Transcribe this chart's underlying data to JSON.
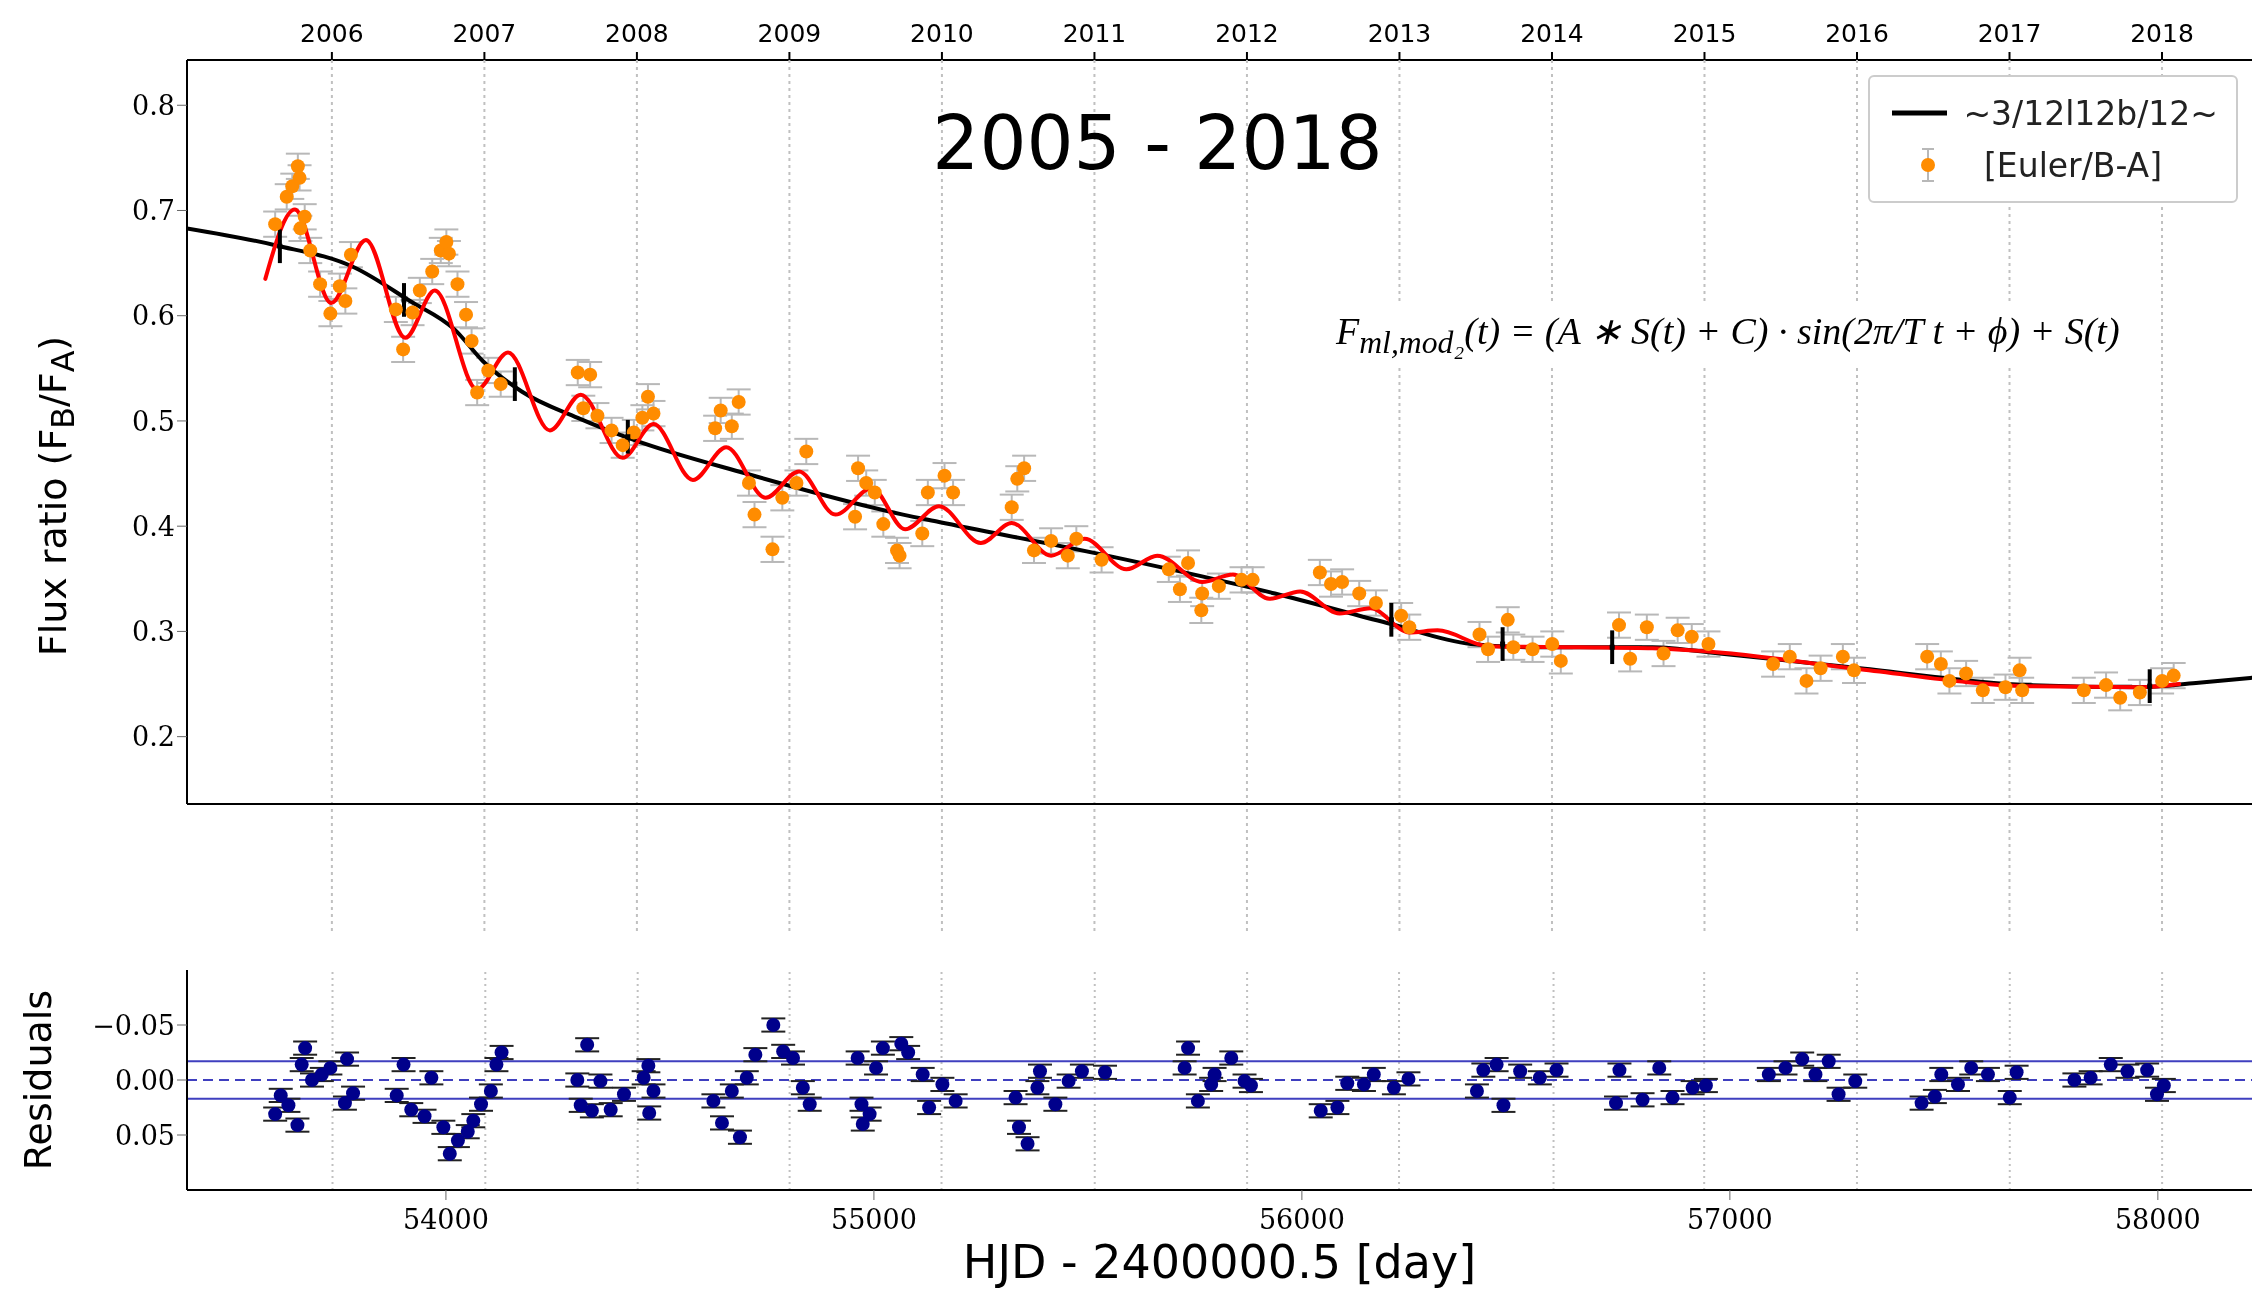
{
  "chart_data": [
    {
      "type": "scatter",
      "title": "2005 - 2018",
      "ylabel": "Flux ratio (F$_{B}$/F$_{A}$)",
      "annotations": [
        "F$_{ml,mod₂}$(t) = (A ∗ S(t) + C) · sin(2π/T t + ϕ) + S(t)"
      ],
      "legend": "top right",
      "grid": "x",
      "xlim": [
        53395,
        58220
      ],
      "xticks": [
        54000,
        55000,
        56000,
        57000,
        58000
      ],
      "tick_labels": "y",
      "x2lim": [
        2005.05,
        2018.59
      ],
      "x2ticks": [
        2006,
        2007,
        2008,
        2009,
        2010,
        2011,
        2012,
        2013,
        2014,
        2015,
        2016,
        2017,
        2018
      ],
      "ylim": [
        0.136,
        0.843
      ],
      "yticks": [
        0.2,
        0.3,
        0.4,
        0.5,
        0.6,
        0.7,
        0.8
      ],
      "series": [
        {
          "type": "scatter",
          "name": "[Euler/B-A]",
          "color": "#ff8c00",
          "marker": "circle",
          "x": [
            53601,
            53628,
            53641,
            53654,
            53658,
            53660,
            53670,
            53683,
            53706,
            53730,
            53752,
            53765,
            53778,
            53883,
            53900,
            53922,
            53939,
            53968,
            53988,
            54001,
            54007,
            54027,
            54047,
            54060,
            54073,
            54099,
            54128,
            54308,
            54321,
            54337,
            54354,
            54387,
            54413,
            54439,
            54459,
            54472,
            54485,
            54629,
            54642,
            54668,
            54684,
            54708,
            54721,
            54763,
            54786,
            54819,
            54842,
            54956,
            54963,
            54982,
            55002,
            55022,
            55054,
            55060,
            55113,
            55126,
            55165,
            55185,
            55322,
            55335,
            55351,
            55374,
            55414,
            55453,
            55473,
            55532,
            55689,
            55715,
            55734,
            55765,
            55767,
            55806,
            55859,
            55885,
            56042,
            56068,
            56094,
            56134,
            56173,
            56232,
            56251,
            56415,
            56435,
            56481,
            56494,
            56539,
            56585,
            56605,
            56741,
            56767,
            56806,
            56845,
            56878,
            56911,
            56950,
            57101,
            57140,
            57179,
            57212,
            57264,
            57290,
            57461,
            57493,
            57513,
            57552,
            57591,
            57644,
            57677,
            57683,
            57827,
            57879,
            57912,
            57958,
            58010,
            58037
          ],
          "values": [
            0.687,
            0.713,
            0.723,
            0.742,
            0.731,
            0.683,
            0.694,
            0.662,
            0.63,
            0.602,
            0.628,
            0.614,
            0.658,
            0.606,
            0.568,
            0.603,
            0.624,
            0.642,
            0.662,
            0.67,
            0.659,
            0.63,
            0.601,
            0.576,
            0.527,
            0.548,
            0.535,
            0.546,
            0.512,
            0.544,
            0.505,
            0.491,
            0.477,
            0.489,
            0.503,
            0.523,
            0.507,
            0.493,
            0.51,
            0.495,
            0.518,
            0.441,
            0.411,
            0.378,
            0.427,
            0.441,
            0.471,
            0.409,
            0.455,
            0.441,
            0.432,
            0.402,
            0.377,
            0.372,
            0.393,
            0.432,
            0.448,
            0.432,
            0.418,
            0.445,
            0.455,
            0.377,
            0.386,
            0.372,
            0.388,
            0.368,
            0.359,
            0.34,
            0.365,
            0.32,
            0.336,
            0.343,
            0.349,
            0.349,
            0.356,
            0.345,
            0.347,
            0.336,
            0.327,
            0.315,
            0.304,
            0.297,
            0.283,
            0.311,
            0.285,
            0.283,
            0.288,
            0.272,
            0.306,
            0.274,
            0.304,
            0.279,
            0.301,
            0.295,
            0.288,
            0.269,
            0.276,
            0.253,
            0.265,
            0.276,
            0.263,
            0.276,
            0.269,
            0.253,
            0.26,
            0.244,
            0.247,
            0.263,
            0.244,
            0.244,
            0.249,
            0.237,
            0.242,
            0.253,
            0.258
          ],
          "errors": [
            0.012,
            0.012,
            0.012,
            0.012,
            0.012,
            0.012,
            0.012,
            0.012,
            0.012,
            0.012,
            0.012,
            0.012,
            0.012,
            0.012,
            0.012,
            0.012,
            0.012,
            0.012,
            0.012,
            0.012,
            0.012,
            0.012,
            0.012,
            0.012,
            0.012,
            0.012,
            0.012,
            0.012,
            0.012,
            0.012,
            0.012,
            0.012,
            0.012,
            0.012,
            0.012,
            0.012,
            0.012,
            0.012,
            0.012,
            0.012,
            0.012,
            0.012,
            0.012,
            0.012,
            0.012,
            0.012,
            0.012,
            0.012,
            0.012,
            0.012,
            0.012,
            0.012,
            0.012,
            0.012,
            0.012,
            0.012,
            0.012,
            0.012,
            0.012,
            0.012,
            0.012,
            0.012,
            0.012,
            0.012,
            0.012,
            0.012,
            0.012,
            0.012,
            0.012,
            0.012,
            0.012,
            0.012,
            0.012,
            0.012,
            0.012,
            0.012,
            0.012,
            0.012,
            0.012,
            0.012,
            0.012,
            0.012,
            0.012,
            0.012,
            0.012,
            0.012,
            0.012,
            0.012,
            0.012,
            0.012,
            0.012,
            0.012,
            0.012,
            0.012,
            0.012,
            0.012,
            0.012,
            0.012,
            0.012,
            0.012,
            0.012,
            0.012,
            0.012,
            0.012,
            0.012,
            0.012,
            0.012,
            0.012,
            0.012,
            0.012,
            0.012,
            0.012,
            0.012,
            0.012,
            0.012
          ]
        },
        {
          "type": "line",
          "name": "~3/12l12b/12~",
          "color": "#000000",
          "x": [
            53395,
            53601,
            53785,
            53916,
            54020,
            54086,
            54177,
            54308,
            54439,
            54701,
            55068,
            55152,
            55545,
            55937,
            56199,
            56395,
            56526,
            56697,
            56819,
            56976,
            57304,
            57696,
            57958,
            58089,
            58220
          ],
          "values": [
            0.683,
            0.667,
            0.646,
            0.614,
            0.587,
            0.557,
            0.528,
            0.503,
            0.482,
            0.45,
            0.411,
            0.404,
            0.372,
            0.336,
            0.308,
            0.288,
            0.285,
            0.285,
            0.285,
            0.279,
            0.265,
            0.249,
            0.247,
            0.251,
            0.256
          ]
        },
        {
          "type": "line",
          "color": "#ff0000",
          "x": [
            53578,
            53647,
            53732,
            53813,
            53905,
            53974,
            54073,
            54145,
            54243,
            54315,
            54413,
            54485,
            54577,
            54655,
            54747,
            54825,
            54910,
            54995,
            55073,
            55152,
            55250,
            55322,
            55414,
            55492,
            55590,
            55662,
            55767,
            55839,
            55924,
            55996,
            56088,
            56160,
            56251,
            56317,
            56435,
            56649,
            56819,
            56976,
            57304,
            57696,
            57958,
            58050
          ],
          "values": [
            0.635,
            0.701,
            0.612,
            0.672,
            0.579,
            0.624,
            0.53,
            0.565,
            0.491,
            0.525,
            0.465,
            0.497,
            0.444,
            0.475,
            0.427,
            0.452,
            0.411,
            0.436,
            0.397,
            0.419,
            0.384,
            0.403,
            0.372,
            0.388,
            0.359,
            0.372,
            0.347,
            0.354,
            0.331,
            0.338,
            0.317,
            0.322,
            0.299,
            0.301,
            0.286,
            0.285,
            0.284,
            0.28,
            0.264,
            0.248,
            0.247,
            0.25
          ]
        },
        {
          "type": "scatter",
          "color": "#000000",
          "marker": "square",
          "x": [
            53612,
            53902,
            54161,
            54425,
            56209,
            56469,
            56725,
            57981
          ],
          "values": [
            0.666,
            0.615,
            0.535,
            0.485,
            0.311,
            0.288,
            0.285,
            0.248
          ],
          "errors": [
            0.016,
            0.016,
            0.016,
            0.016,
            0.016,
            0.016,
            0.016,
            0.016
          ]
        }
      ]
    },
    {
      "type": "scatter",
      "xlabel": "HJD - 2400000.5 [day]",
      "ylabel": "Residuals",
      "xlim": [
        53395,
        58220
      ],
      "xticks": [
        54000,
        55000,
        56000,
        57000,
        58000
      ],
      "ylim": [
        0.1,
        -0.1
      ],
      "yticks": [
        {
          "value": -0.05,
          "label": "−0.05"
        },
        {
          "value": 0,
          "label": "0.00"
        },
        {
          "value": 0.05,
          "label": "0.05"
        }
      ],
      "ref_lines": [
        {
          "axis": "x",
          "value": 53735,
          "color": "#c0c0c0",
          "line_style": "dotted"
        },
        {
          "axis": "x",
          "value": 54092,
          "color": "#c0c0c0",
          "line_style": "dotted"
        },
        {
          "axis": "x",
          "value": 54448,
          "color": "#c0c0c0",
          "line_style": "dotted"
        },
        {
          "axis": "x",
          "value": 54803,
          "color": "#c0c0c0",
          "line_style": "dotted"
        },
        {
          "axis": "x",
          "value": 55158,
          "color": "#c0c0c0",
          "line_style": "dotted"
        },
        {
          "axis": "x",
          "value": 55516,
          "color": "#c0c0c0",
          "line_style": "dotted"
        },
        {
          "axis": "x",
          "value": 55872,
          "color": "#c0c0c0",
          "line_style": "dotted"
        },
        {
          "axis": "x",
          "value": 56227,
          "color": "#c0c0c0",
          "line_style": "dotted"
        },
        {
          "axis": "x",
          "value": 56588,
          "color": "#c0c0c0",
          "line_style": "dotted"
        },
        {
          "axis": "x",
          "value": 56940,
          "color": "#c0c0c0",
          "line_style": "dotted"
        },
        {
          "axis": "x",
          "value": 57297,
          "color": "#c0c0c0",
          "line_style": "dotted"
        },
        {
          "axis": "x",
          "value": 57654,
          "color": "#c0c0c0",
          "line_style": "dotted"
        },
        {
          "axis": "x",
          "value": 58010,
          "color": "#c0c0c0",
          "line_style": "dotted"
        },
        {
          "axis": "y",
          "value": -0.017,
          "color": "#3f3fbf"
        },
        {
          "axis": "y",
          "value": 0,
          "color": "#3f3fbf",
          "line_style": "dashed"
        },
        {
          "axis": "y",
          "value": 0.017,
          "color": "#3f3fbf"
        }
      ],
      "series": [
        {
          "color": "#00008b",
          "marker": "circle",
          "x": [
            53601,
            53614,
            53632,
            53653,
            53663,
            53671,
            53687,
            53710,
            53730,
            53764,
            53769,
            53783,
            53885,
            53901,
            53919,
            53950,
            53966,
            53994,
            54009,
            54028,
            54051,
            54064,
            54082,
            54105,
            54118,
            54130,
            54307,
            54315,
            54330,
            54341,
            54361,
            54385,
            54416,
            54462,
            54473,
            54475,
            54485,
            54625,
            54645,
            54668,
            54687,
            54703,
            54723,
            54765,
            54788,
            54811,
            54834,
            54850,
            54962,
            54971,
            54974,
            54990,
            55005,
            55021,
            55064,
            55080,
            55114,
            55129,
            55160,
            55191,
            55331,
            55339,
            55359,
            55382,
            55388,
            55424,
            55455,
            55486,
            55540,
            55726,
            55734,
            55757,
            55788,
            55796,
            55835,
            55866,
            55881,
            56044,
            56083,
            56106,
            56145,
            56168,
            56215,
            56249,
            56409,
            56424,
            56455,
            56471,
            56510,
            56556,
            56595,
            56734,
            56742,
            56796,
            56835,
            56866,
            56913,
            56944,
            57091,
            57130,
            57169,
            57200,
            57231,
            57254,
            57293,
            57448,
            57479,
            57494,
            57533,
            57564,
            57603,
            57654,
            57670,
            57805,
            57843,
            57890,
            57929,
            57975,
            57998,
            58014
          ],
          "values": [
            0.031,
            0.014,
            0.023,
            0.041,
            -0.014,
            -0.029,
            0.0,
            -0.005,
            -0.011,
            0.021,
            -0.019,
            0.012,
            0.014,
            -0.014,
            0.027,
            0.033,
            -0.002,
            0.043,
            0.067,
            0.055,
            0.047,
            0.037,
            0.022,
            0.01,
            -0.014,
            -0.025,
            0.0,
            0.023,
            -0.032,
            0.028,
            0.001,
            0.027,
            0.013,
            -0.002,
            -0.013,
            0.03,
            0.01,
            0.019,
            0.039,
            0.01,
            0.052,
            -0.002,
            -0.023,
            -0.05,
            -0.026,
            -0.02,
            0.007,
            0.022,
            -0.02,
            0.022,
            0.04,
            0.031,
            -0.011,
            -0.029,
            -0.033,
            -0.025,
            -0.005,
            0.025,
            0.004,
            0.019,
            0.016,
            0.043,
            0.058,
            0.007,
            -0.008,
            0.022,
            0.001,
            -0.008,
            -0.007,
            -0.011,
            -0.029,
            0.019,
            0.004,
            -0.005,
            -0.02,
            0.001,
            0.005,
            0.028,
            0.025,
            0.003,
            0.004,
            -0.005,
            0.007,
            -0.001,
            0.01,
            -0.009,
            -0.014,
            0.023,
            -0.008,
            -0.002,
            -0.009,
            0.021,
            -0.009,
            0.018,
            -0.011,
            0.016,
            0.007,
            0.005,
            -0.005,
            -0.011,
            -0.019,
            -0.005,
            -0.017,
            0.013,
            0.001,
            0.021,
            0.015,
            -0.005,
            0.004,
            -0.011,
            -0.005,
            0.016,
            -0.007,
            0.0,
            -0.002,
            -0.014,
            -0.008,
            -0.009,
            0.013,
            0.005
          ],
          "errors": [
            0.006,
            0.006,
            0.006,
            0.006,
            0.006,
            0.006,
            0.006,
            0.006,
            0.006,
            0.006,
            0.006,
            0.006,
            0.006,
            0.006,
            0.006,
            0.006,
            0.006,
            0.006,
            0.006,
            0.006,
            0.006,
            0.006,
            0.006,
            0.006,
            0.006,
            0.006,
            0.006,
            0.006,
            0.006,
            0.006,
            0.006,
            0.006,
            0.006,
            0.006,
            0.006,
            0.006,
            0.006,
            0.006,
            0.006,
            0.006,
            0.006,
            0.006,
            0.006,
            0.006,
            0.006,
            0.006,
            0.006,
            0.006,
            0.006,
            0.006,
            0.006,
            0.006,
            0.006,
            0.006,
            0.006,
            0.006,
            0.006,
            0.006,
            0.006,
            0.006,
            0.006,
            0.006,
            0.006,
            0.006,
            0.006,
            0.006,
            0.006,
            0.006,
            0.006,
            0.006,
            0.006,
            0.006,
            0.006,
            0.006,
            0.006,
            0.006,
            0.006,
            0.006,
            0.006,
            0.006,
            0.006,
            0.006,
            0.006,
            0.006,
            0.006,
            0.006,
            0.006,
            0.006,
            0.006,
            0.006,
            0.006,
            0.006,
            0.006,
            0.006,
            0.006,
            0.006,
            0.006,
            0.006,
            0.006,
            0.006,
            0.006,
            0.006,
            0.006,
            0.006,
            0.006,
            0.006,
            0.006,
            0.006,
            0.006,
            0.006,
            0.006,
            0.006,
            0.006,
            0.006,
            0.006,
            0.006,
            0.006,
            0.006,
            0.006,
            0.006
          ]
        }
      ]
    }
  ]
}
